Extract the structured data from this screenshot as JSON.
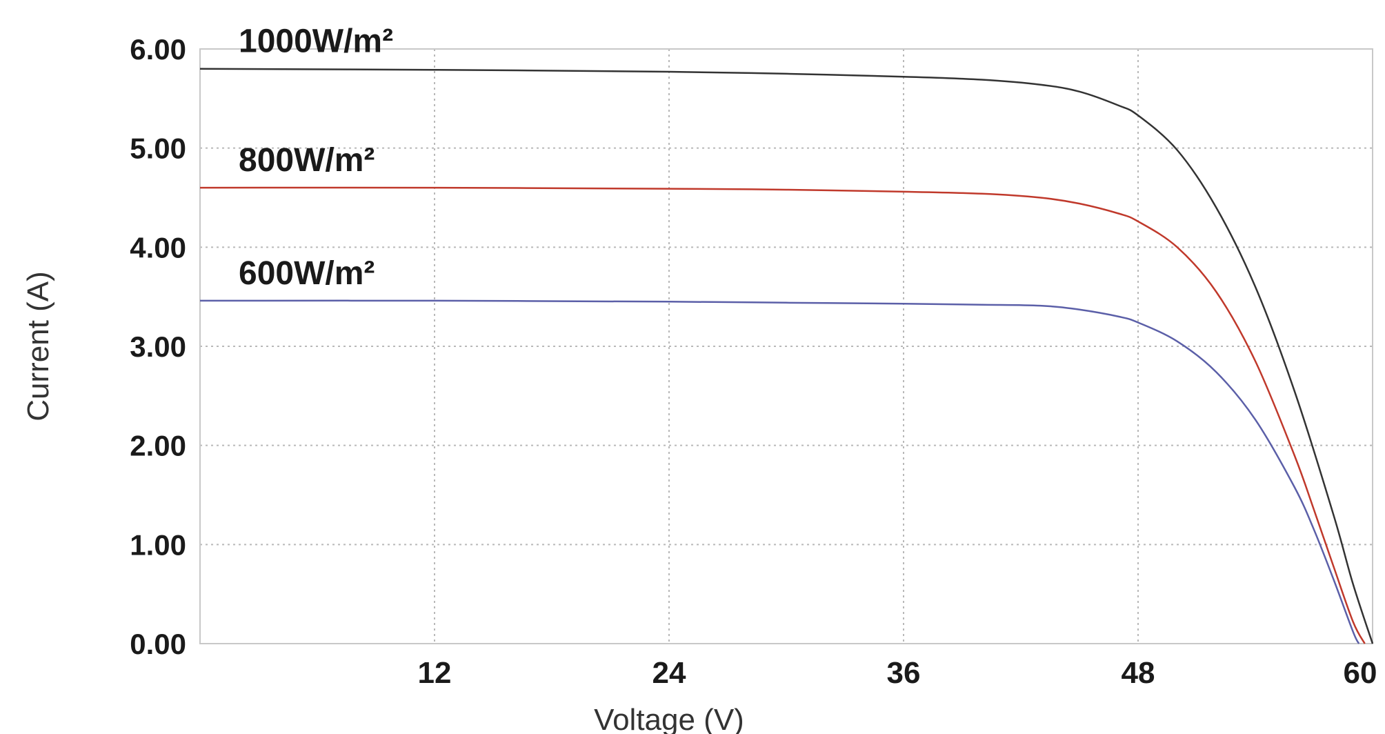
{
  "chart_data": {
    "type": "line",
    "title": "",
    "xlabel": "Voltage (V)",
    "ylabel": "Current (A)",
    "xlim": [
      0,
      60
    ],
    "ylim": [
      0,
      6
    ],
    "x_ticks": [
      12,
      24,
      36,
      48,
      60
    ],
    "x_tick_labels": [
      "12",
      "24",
      "36",
      "48",
      "60"
    ],
    "y_ticks": [
      0,
      1,
      2,
      3,
      4,
      5,
      6
    ],
    "y_tick_labels": [
      "0.00",
      "1.00",
      "2.00",
      "3.00",
      "4.00",
      "5.00",
      "6.00"
    ],
    "grid": true,
    "legend": "inline labels above each curve",
    "series": [
      {
        "name": "1000W/m²",
        "color": "#333333",
        "x": [
          0,
          12,
          24,
          30,
          36,
          40,
          43,
          45,
          47,
          48,
          50,
          52,
          54,
          56,
          58,
          59,
          60
        ],
        "y": [
          5.8,
          5.79,
          5.77,
          5.75,
          5.72,
          5.69,
          5.64,
          5.57,
          5.43,
          5.33,
          4.98,
          4.4,
          3.6,
          2.55,
          1.3,
          0.6,
          0.0
        ]
      },
      {
        "name": "800W/m²",
        "color": "#c0392b",
        "x": [
          0,
          12,
          24,
          30,
          36,
          40,
          43,
          45,
          47,
          48,
          50,
          52,
          54,
          56,
          57,
          58,
          59,
          59.6
        ],
        "y": [
          4.6,
          4.6,
          4.59,
          4.58,
          4.56,
          4.54,
          4.5,
          4.44,
          4.34,
          4.26,
          4.0,
          3.55,
          2.85,
          1.9,
          1.35,
          0.78,
          0.22,
          0.0
        ]
      },
      {
        "name": "600W/m²",
        "color": "#5b5fa8",
        "x": [
          0,
          12,
          24,
          30,
          36,
          40,
          43,
          45,
          47,
          48,
          50,
          52,
          54,
          56,
          57,
          58,
          59,
          59.3
        ],
        "y": [
          3.46,
          3.46,
          3.45,
          3.44,
          3.43,
          3.42,
          3.41,
          3.37,
          3.3,
          3.24,
          3.05,
          2.74,
          2.26,
          1.58,
          1.15,
          0.65,
          0.12,
          0.0
        ]
      }
    ]
  }
}
